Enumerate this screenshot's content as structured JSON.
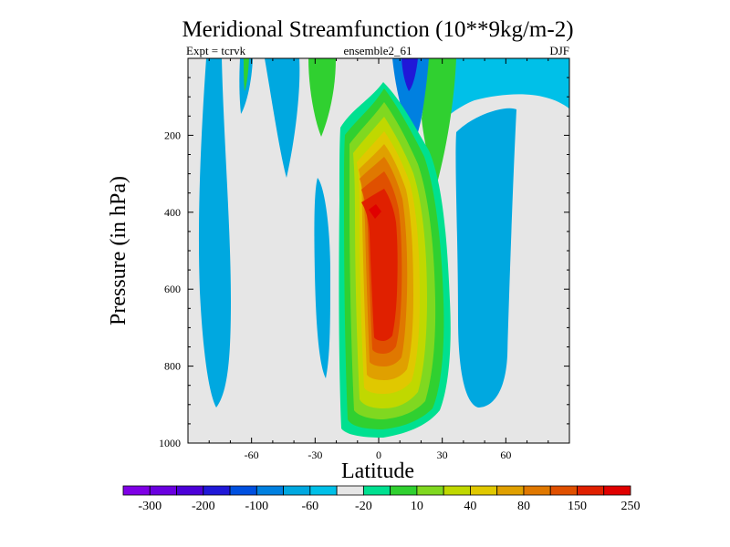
{
  "chart_data": {
    "type": "contour",
    "title": "Meridional Streamfunction (10**9kg/m-2)",
    "subtitle_left": "Expt = tcrvk",
    "subtitle_center": "ensemble2_61",
    "subtitle_right": "DJF",
    "xlabel": "Latitude",
    "ylabel": "Pressure (in hPa)",
    "xlim": [
      -90,
      90
    ],
    "ylim": [
      1000,
      0
    ],
    "x_ticks": [
      -60,
      -30,
      0,
      30,
      60
    ],
    "y_ticks": [
      200,
      400,
      600,
      800,
      1000
    ],
    "colorbar_labels": [
      "-300",
      "-200",
      "-100",
      "-60",
      "-20",
      "10",
      "40",
      "80",
      "150",
      "250"
    ],
    "colorbar_colors": [
      "#7f00e6",
      "#6a00e0",
      "#4c00d8",
      "#2018d8",
      "#0050e0",
      "#0080e0",
      "#00a8e0",
      "#00c0e8",
      "#e6e6e6",
      "#00e090",
      "#30d030",
      "#80d820",
      "#c0d800",
      "#e0c800",
      "#e0a000",
      "#e07800",
      "#e05000",
      "#e02000",
      "#e00000"
    ],
    "features": [
      {
        "name": "northern winter Hadley cell",
        "sign": "positive",
        "lat_range": [
          -20,
          30
        ],
        "max_approx": 250,
        "max_lat": 0,
        "max_pressure": 400
      },
      {
        "name": "southern cell",
        "sign": "negative",
        "lat_range": [
          -80,
          -60
        ],
        "min_approx": -20
      },
      {
        "name": "northern mid-latitude cell",
        "sign": "negative",
        "lat_range": [
          25,
          60
        ],
        "min_approx": -20
      },
      {
        "name": "upper-level negative near equator",
        "sign": "negative",
        "lat_range": [
          5,
          25
        ],
        "min_approx": -100
      }
    ]
  }
}
